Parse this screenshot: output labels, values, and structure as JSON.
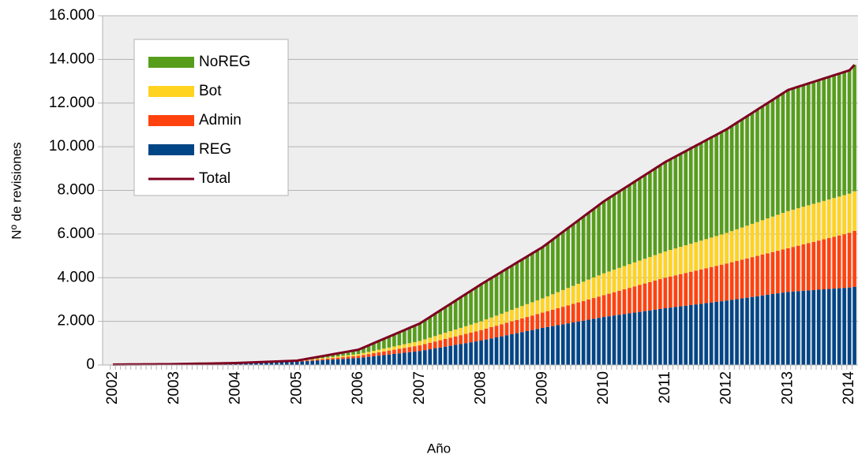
{
  "chart_data": {
    "type": "bar",
    "stacked": true,
    "y_label": "Nº de revisiones",
    "x_label": "Año",
    "categories": [
      "2002",
      null,
      null,
      null,
      null,
      null,
      null,
      null,
      null,
      null,
      null,
      null,
      "2003",
      null,
      null,
      null,
      null,
      null,
      null,
      null,
      null,
      null,
      null,
      null,
      "2004",
      null,
      null,
      null,
      null,
      null,
      null,
      null,
      null,
      null,
      null,
      null,
      "2005",
      null,
      null,
      null,
      null,
      null,
      null,
      null,
      null,
      null,
      null,
      null,
      "2006",
      null,
      null,
      null,
      null,
      null,
      null,
      null,
      null,
      null,
      null,
      null,
      "2007",
      null,
      null,
      null,
      null,
      null,
      null,
      null,
      null,
      null,
      null,
      null,
      "2008",
      null,
      null,
      null,
      null,
      null,
      null,
      null,
      null,
      null,
      null,
      null,
      "2009",
      null,
      null,
      null,
      null,
      null,
      null,
      null,
      null,
      null,
      null,
      null,
      "2010",
      null,
      null,
      null,
      null,
      null,
      null,
      null,
      null,
      null,
      null,
      null,
      "2011",
      null,
      null,
      null,
      null,
      null,
      null,
      null,
      null,
      null,
      null,
      null,
      "2012",
      null,
      null,
      null,
      null,
      null,
      null,
      null,
      null,
      null,
      null,
      null,
      "2013",
      null,
      null,
      null,
      null,
      null,
      null,
      null,
      null,
      null,
      null,
      null,
      "2014",
      null
    ],
    "series": [
      {
        "name": "REG",
        "color": "#004586",
        "values": [
          15,
          16,
          18,
          19,
          20,
          21,
          22,
          24,
          25,
          26,
          28,
          29,
          30,
          33,
          37,
          40,
          43,
          47,
          50,
          53,
          57,
          60,
          63,
          67,
          70,
          77,
          83,
          90,
          97,
          103,
          110,
          117,
          123,
          130,
          137,
          143,
          150,
          164,
          178,
          193,
          207,
          221,
          235,
          249,
          263,
          278,
          292,
          306,
          320,
          347,
          373,
          400,
          427,
          453,
          480,
          507,
          533,
          560,
          587,
          613,
          640,
          680,
          720,
          760,
          800,
          840,
          880,
          920,
          960,
          1000,
          1040,
          1080,
          1120,
          1168,
          1217,
          1265,
          1313,
          1362,
          1410,
          1458,
          1507,
          1555,
          1603,
          1652,
          1700,
          1742,
          1783,
          1825,
          1867,
          1908,
          1950,
          1992,
          2033,
          2075,
          2117,
          2158,
          2200,
          2233,
          2267,
          2300,
          2333,
          2367,
          2400,
          2433,
          2467,
          2500,
          2533,
          2567,
          2600,
          2629,
          2658,
          2688,
          2717,
          2746,
          2775,
          2804,
          2833,
          2863,
          2892,
          2921,
          2950,
          2983,
          3017,
          3050,
          3083,
          3117,
          3150,
          3183,
          3217,
          3250,
          3283,
          3317,
          3350,
          3367,
          3383,
          3400,
          3417,
          3433,
          3450,
          3467,
          3483,
          3500,
          3517,
          3533,
          3550,
          3580
        ]
      },
      {
        "name": "Admin",
        "color": "#ff420e",
        "values": [
          2,
          2,
          2,
          3,
          3,
          3,
          3,
          3,
          3,
          4,
          4,
          4,
          4,
          4,
          5,
          5,
          5,
          6,
          6,
          6,
          7,
          7,
          7,
          8,
          8,
          9,
          10,
          11,
          12,
          13,
          14,
          15,
          16,
          17,
          18,
          19,
          20,
          27,
          33,
          40,
          47,
          53,
          60,
          67,
          73,
          80,
          87,
          93,
          100,
          113,
          127,
          140,
          153,
          167,
          180,
          193,
          207,
          220,
          233,
          247,
          260,
          278,
          297,
          315,
          333,
          352,
          370,
          388,
          407,
          425,
          443,
          462,
          480,
          498,
          517,
          535,
          553,
          572,
          590,
          608,
          627,
          645,
          663,
          682,
          700,
          725,
          750,
          775,
          800,
          825,
          850,
          875,
          900,
          925,
          950,
          975,
          1000,
          1033,
          1067,
          1100,
          1133,
          1167,
          1200,
          1233,
          1267,
          1300,
          1333,
          1367,
          1400,
          1425,
          1450,
          1475,
          1500,
          1525,
          1550,
          1575,
          1600,
          1625,
          1650,
          1675,
          1700,
          1725,
          1750,
          1775,
          1800,
          1825,
          1850,
          1875,
          1900,
          1925,
          1950,
          1975,
          2000,
          2042,
          2083,
          2125,
          2167,
          2208,
          2250,
          2292,
          2333,
          2375,
          2417,
          2458,
          2500,
          2560
        ]
      },
      {
        "name": "Bot",
        "color": "#ffd320",
        "values": [
          1,
          1,
          1,
          1,
          1,
          1,
          2,
          2,
          2,
          2,
          2,
          2,
          2,
          2,
          2,
          3,
          3,
          3,
          3,
          3,
          3,
          4,
          4,
          4,
          4,
          5,
          5,
          6,
          6,
          7,
          7,
          8,
          8,
          9,
          9,
          10,
          10,
          16,
          22,
          28,
          33,
          39,
          45,
          51,
          57,
          63,
          68,
          74,
          80,
          90,
          100,
          110,
          120,
          130,
          140,
          150,
          160,
          170,
          180,
          190,
          200,
          217,
          233,
          250,
          267,
          283,
          300,
          317,
          333,
          350,
          367,
          383,
          400,
          421,
          442,
          463,
          483,
          504,
          525,
          546,
          567,
          588,
          608,
          629,
          650,
          679,
          708,
          738,
          767,
          796,
          825,
          854,
          883,
          913,
          942,
          971,
          1000,
          1017,
          1033,
          1050,
          1067,
          1083,
          1100,
          1117,
          1133,
          1150,
          1167,
          1183,
          1200,
          1217,
          1233,
          1250,
          1267,
          1283,
          1300,
          1317,
          1333,
          1350,
          1367,
          1383,
          1400,
          1425,
          1450,
          1475,
          1500,
          1525,
          1550,
          1575,
          1600,
          1625,
          1650,
          1675,
          1700,
          1708,
          1717,
          1725,
          1733,
          1742,
          1750,
          1758,
          1767,
          1775,
          1783,
          1792,
          1800,
          1820
        ]
      },
      {
        "name": "NoREG",
        "color": "#579d1c",
        "values": [
          2,
          2,
          2,
          3,
          3,
          3,
          3,
          3,
          3,
          4,
          4,
          4,
          4,
          4,
          5,
          5,
          5,
          6,
          6,
          6,
          7,
          7,
          7,
          8,
          8,
          9,
          10,
          11,
          12,
          13,
          14,
          15,
          16,
          17,
          18,
          19,
          20,
          35,
          50,
          65,
          80,
          95,
          110,
          125,
          140,
          155,
          170,
          185,
          200,
          250,
          300,
          350,
          400,
          450,
          500,
          550,
          600,
          650,
          700,
          750,
          800,
          875,
          950,
          1025,
          1100,
          1175,
          1250,
          1325,
          1400,
          1475,
          1550,
          1625,
          1700,
          1754,
          1808,
          1863,
          1917,
          1971,
          2025,
          2079,
          2133,
          2188,
          2242,
          2296,
          2350,
          2429,
          2508,
          2588,
          2667,
          2746,
          2825,
          2904,
          2983,
          3063,
          3142,
          3221,
          3300,
          3367,
          3433,
          3500,
          3567,
          3633,
          3700,
          3767,
          3833,
          3900,
          3967,
          4033,
          4100,
          4154,
          4208,
          4263,
          4317,
          4371,
          4425,
          4479,
          4533,
          4588,
          4642,
          4696,
          4750,
          4817,
          4883,
          4950,
          5017,
          5083,
          5150,
          5217,
          5283,
          5350,
          5417,
          5483,
          5550,
          5558,
          5567,
          5575,
          5583,
          5592,
          5600,
          5608,
          5617,
          5625,
          5633,
          5642,
          5650,
          5790
        ]
      },
      {
        "name": "Total",
        "color": "#7e0021",
        "type": "line",
        "values": [
          20,
          22,
          23,
          25,
          27,
          28,
          30,
          32,
          33,
          35,
          37,
          38,
          40,
          44,
          48,
          53,
          57,
          61,
          65,
          69,
          73,
          78,
          82,
          86,
          90,
          99,
          108,
          118,
          127,
          136,
          145,
          154,
          163,
          173,
          182,
          191,
          200,
          242,
          283,
          325,
          367,
          408,
          450,
          492,
          533,
          575,
          617,
          658,
          700,
          800,
          900,
          1000,
          1100,
          1200,
          1300,
          1400,
          1500,
          1600,
          1700,
          1800,
          1900,
          2050,
          2200,
          2350,
          2500,
          2650,
          2800,
          2950,
          3100,
          3250,
          3400,
          3550,
          3700,
          3842,
          3983,
          4125,
          4267,
          4408,
          4550,
          4692,
          4833,
          4975,
          5117,
          5258,
          5400,
          5575,
          5750,
          5925,
          6100,
          6275,
          6450,
          6625,
          6800,
          6975,
          7150,
          7325,
          7500,
          7650,
          7800,
          7950,
          8100,
          8250,
          8400,
          8550,
          8700,
          8850,
          9000,
          9150,
          9300,
          9425,
          9550,
          9675,
          9800,
          9925,
          10050,
          10175,
          10300,
          10425,
          10550,
          10675,
          10800,
          10950,
          11100,
          11250,
          11400,
          11550,
          11700,
          11850,
          12000,
          12150,
          12300,
          12450,
          12600,
          12675,
          12750,
          12825,
          12900,
          12975,
          13050,
          13125,
          13200,
          13275,
          13350,
          13425,
          13500,
          13750
        ]
      }
    ],
    "ylim": [
      0,
      16000
    ],
    "yticks": [
      0,
      {
        "value": 2000,
        "label": "2.000"
      },
      {
        "value": 4000,
        "label": "4.000"
      },
      {
        "value": 6000,
        "label": "6.000"
      },
      {
        "value": 8000,
        "label": "8.000"
      },
      {
        "value": 10000,
        "label": "10.000"
      },
      {
        "value": 12000,
        "label": "12.000"
      },
      {
        "value": 14000,
        "label": "14.000"
      },
      {
        "value": 16000,
        "label": "16.000"
      }
    ],
    "grid": true,
    "legend": "upper left"
  }
}
